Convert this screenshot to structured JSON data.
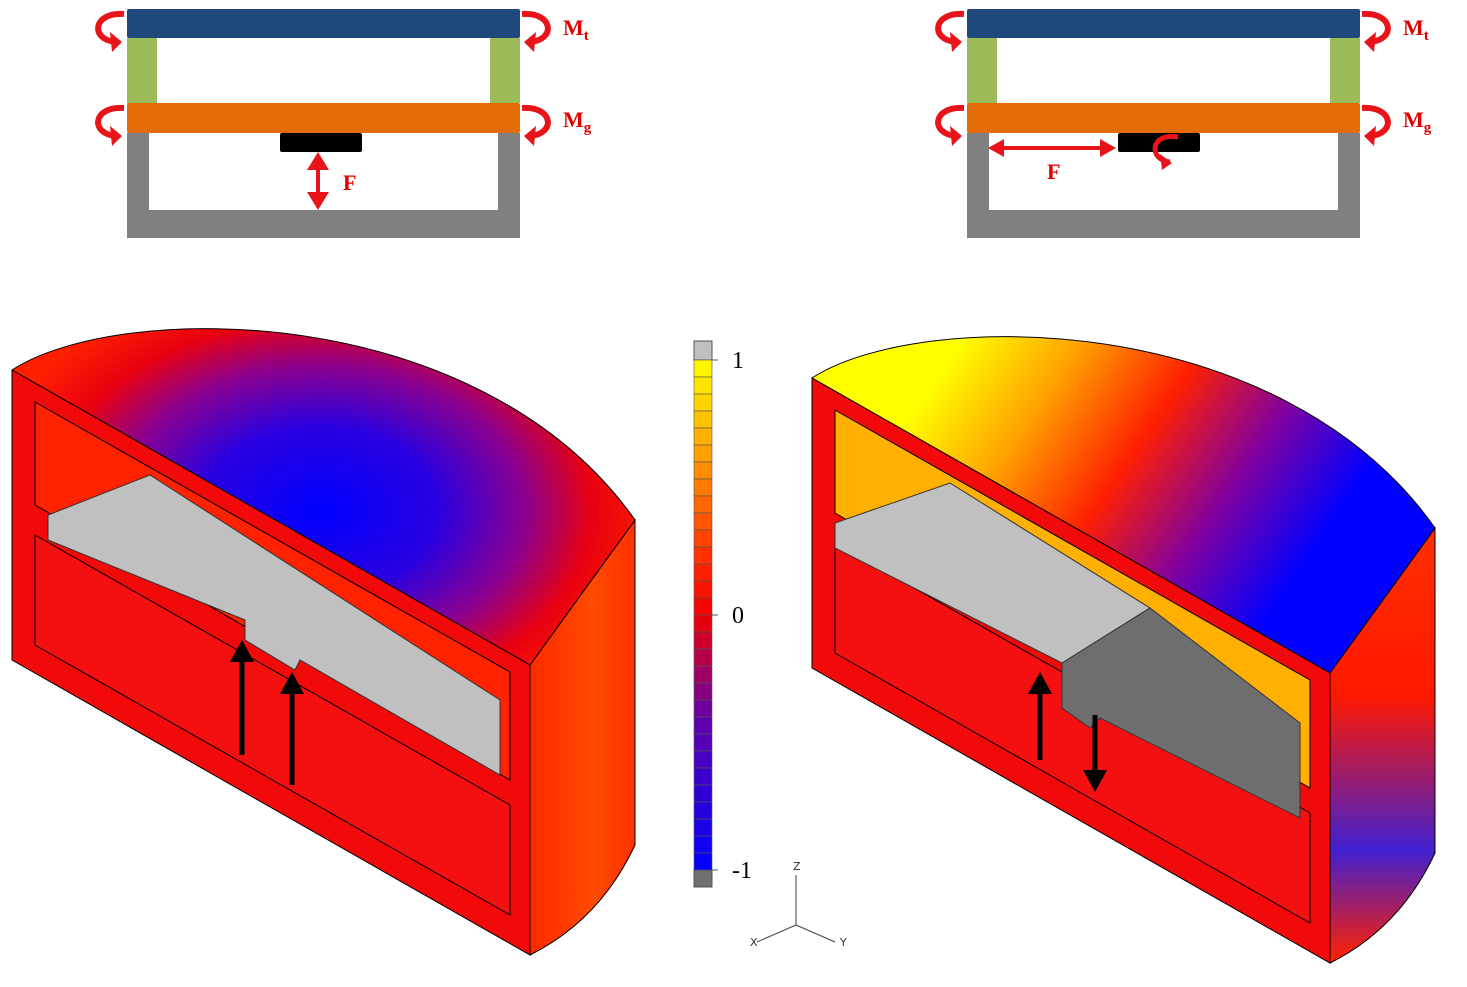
{
  "left_schematic": {
    "top_moment": {
      "label": "M",
      "subscript": "t"
    },
    "middle_moment": {
      "label": "M",
      "subscript": "g"
    },
    "force": "F"
  },
  "right_schematic": {
    "top_moment": {
      "label": "M",
      "subscript": "t"
    },
    "middle_moment": {
      "label": "M",
      "subscript": "g"
    },
    "force": "F"
  },
  "colorbar": {
    "ticks": [
      1,
      0,
      -1
    ]
  },
  "axes_triad": {
    "z": "Z",
    "x": "X",
    "y": "Y"
  }
}
